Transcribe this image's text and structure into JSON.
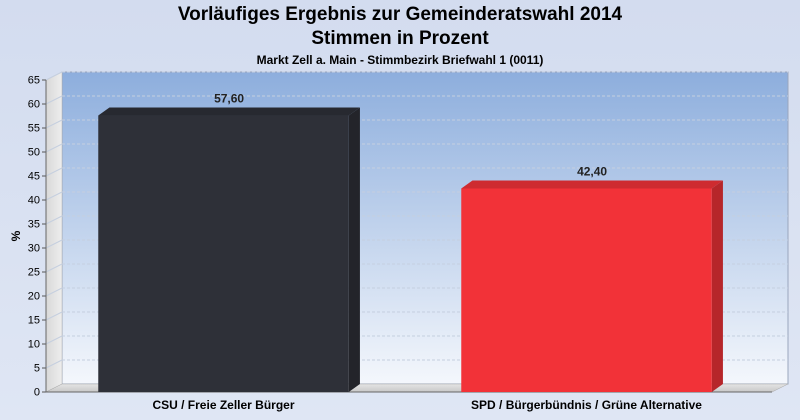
{
  "chart_data": {
    "type": "bar",
    "title": "Vorläufiges Ergebnis zur Gemeinderatswahl 2014",
    "subtitle": "Stimmen in Prozent",
    "caption": "Markt Zell a. Main - Stimmbezirk Briefwahl 1 (0011)",
    "ylabel": "%",
    "xlabel": "",
    "ylim": [
      0,
      65
    ],
    "yticks": [
      0,
      5,
      10,
      15,
      20,
      25,
      30,
      35,
      40,
      45,
      50,
      55,
      60,
      65
    ],
    "categories": [
      "CSU / Freie Zeller Bürger",
      "SPD / Bürgerbündnis / Grüne Alternative"
    ],
    "values": [
      57.6,
      42.4
    ],
    "value_labels": [
      "57,60",
      "42,40"
    ],
    "colors": [
      "#2e3038",
      "#f23238"
    ],
    "grid": true,
    "legend": "none"
  }
}
